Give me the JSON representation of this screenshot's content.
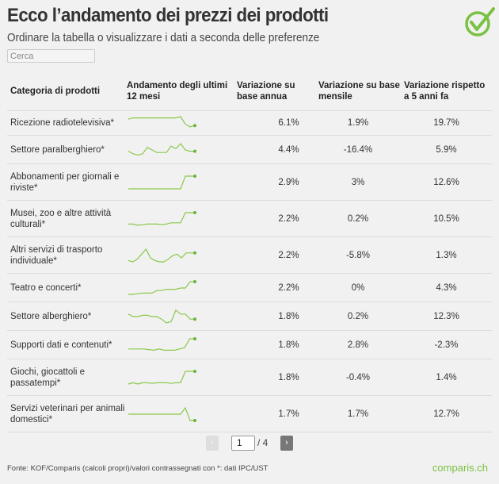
{
  "header": {
    "title": "Ecco l’andamento dei prezzi dei prodotti",
    "subtitle": "Ordinare la tabella o visualizzare i dati a seconda delle preferenze",
    "logo_icon": "check-circle-icon",
    "accent_color": "#7ac143"
  },
  "search": {
    "placeholder": "Cerca",
    "value": ""
  },
  "table": {
    "columns": [
      "Categoria di prodotti",
      "Andamento degli ultimi 12 mesi",
      "Variazione su base annua",
      "Variazione su base mensile",
      "Variazione rispetto a 5 anni fa"
    ],
    "rows": [
      {
        "category": "Ricezione radiotelevisiva*",
        "trend": [
          8,
          9,
          9,
          9,
          9,
          9,
          9,
          9,
          9,
          9,
          9,
          10,
          4,
          2,
          3
        ],
        "annual": "6.1%",
        "monthly": "1.9%",
        "five_year": "19.7%"
      },
      {
        "category": "Settore paralberghiero*",
        "trend": [
          4,
          2,
          1,
          2,
          7,
          5,
          3,
          3,
          3,
          8,
          6,
          10,
          5,
          4,
          4
        ],
        "annual": "4.4%",
        "monthly": "-16.4%",
        "five_year": "5.9%"
      },
      {
        "category": "Abbonamenti per giornali e riviste*",
        "trend": [
          0,
          0,
          0,
          0,
          0,
          0,
          0,
          0,
          0,
          0,
          0,
          0,
          10,
          10,
          10
        ],
        "annual": "2.9%",
        "monthly": "3%",
        "five_year": "12.6%"
      },
      {
        "category": "Musei, zoo e altre attività culturali*",
        "trend": [
          1,
          1,
          0,
          0.5,
          1,
          1,
          1,
          0.5,
          1,
          2,
          2,
          2,
          10,
          10,
          10
        ],
        "annual": "2.2%",
        "monthly": "0.2%",
        "five_year": "10.5%"
      },
      {
        "category": "Altri servizi di trasporto individuale*",
        "trend": [
          1,
          0,
          2,
          6,
          10,
          3,
          1,
          0,
          0,
          2,
          5,
          6,
          3,
          7,
          7,
          7
        ],
        "annual": "2.2%",
        "monthly": "-5.8%",
        "five_year": "1.3%"
      },
      {
        "category": "Teatro e concerti*",
        "trend": [
          0,
          0,
          0.5,
          1,
          1,
          1,
          3,
          3,
          4,
          4,
          4,
          5,
          5,
          10,
          10
        ],
        "annual": "2.2%",
        "monthly": "0%",
        "five_year": "4.3%"
      },
      {
        "category": "Settore alberghiero*",
        "trend": [
          7,
          5,
          5,
          6,
          6,
          5,
          5,
          3,
          0,
          1,
          10,
          7,
          7,
          3,
          3
        ],
        "annual": "1.8%",
        "monthly": "0.2%",
        "five_year": "12.3%"
      },
      {
        "category": "Supporti dati e contenuti*",
        "trend": [
          2,
          2,
          2,
          2,
          1.5,
          1,
          2,
          1,
          1,
          1,
          2,
          3,
          10,
          10
        ],
        "annual": "1.8%",
        "monthly": "2.8%",
        "five_year": "-2.3%"
      },
      {
        "category": "Giochi, giocattoli e passatempi*",
        "trend": [
          0,
          1,
          0,
          1,
          1,
          0.5,
          1,
          1,
          1,
          0.5,
          1,
          1,
          10,
          10,
          10
        ],
        "annual": "1.8%",
        "monthly": "-0.4%",
        "five_year": "1.4%"
      },
      {
        "category": "Servizi veterinari per animali domestici*",
        "trend": [
          5,
          5,
          5,
          5,
          5,
          5,
          5,
          5,
          5,
          5,
          5,
          5,
          10,
          0,
          0
        ],
        "annual": "1.7%",
        "monthly": "1.7%",
        "five_year": "12.7%"
      }
    ]
  },
  "pagination": {
    "prev_icon": "chevron-left-icon",
    "next_icon": "chevron-right-icon",
    "prev": "‹",
    "next": "›",
    "current": "1",
    "total": "/ 4"
  },
  "footer": {
    "source": "Fonte: KOF/Comparis (calcoli propri)/valori contrassegnati con *: dati IPC/UST",
    "brand": "comparis.ch"
  }
}
